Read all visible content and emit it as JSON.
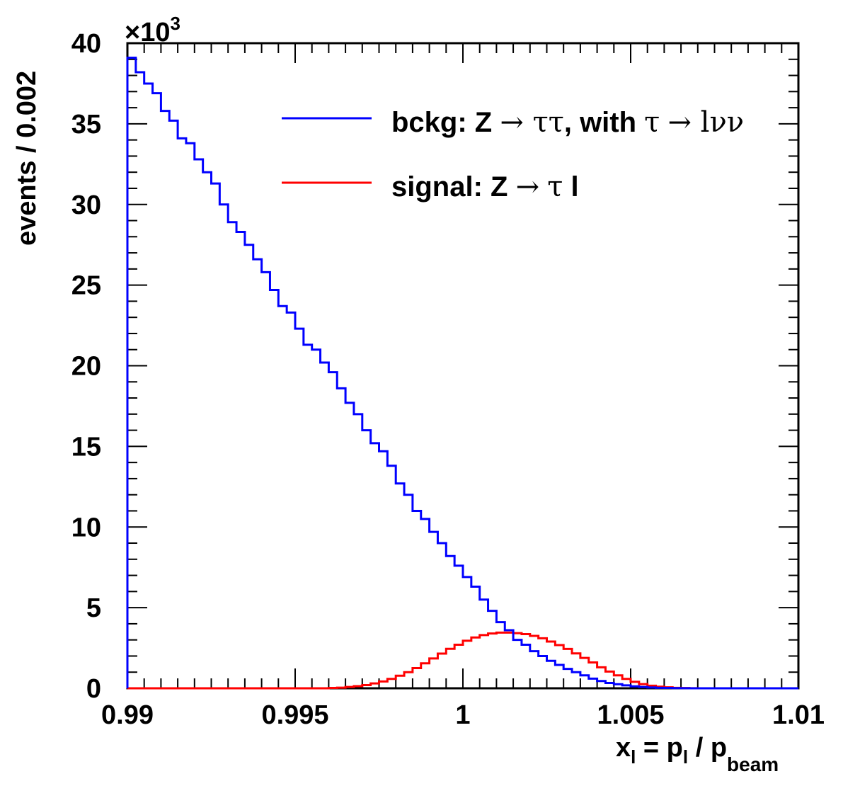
{
  "chart_data": {
    "type": "line",
    "style": "step-histogram",
    "title": "",
    "xlabel": "x_l = p_l / p_beam",
    "xlabel_parts": {
      "x": "x",
      "x_sub": "l",
      "eq": " = p",
      "p_sub": "l",
      "slash": " / p",
      "beam_sub": "beam"
    },
    "ylabel": "events / 0.002",
    "y_multiplier": "×10",
    "y_multiplier_exp": "3",
    "xlim": [
      0.99,
      1.01
    ],
    "ylim": [
      0,
      40
    ],
    "x_ticks": [
      "0.99",
      "0.995",
      "1",
      "1.005",
      "1.01"
    ],
    "x_tick_values": [
      0.99,
      0.995,
      1.0,
      1.005,
      1.01
    ],
    "y_ticks": [
      "0",
      "5",
      "10",
      "15",
      "20",
      "25",
      "30",
      "35",
      "40"
    ],
    "y_tick_values": [
      0,
      5,
      10,
      15,
      20,
      25,
      30,
      35,
      40
    ],
    "legend_position": "top-right",
    "bin_width": 0.00025,
    "series": [
      {
        "name": "bckg",
        "label": "bckg: Z → ττ, with τ → lνν",
        "label_parts": [
          "bckg: Z ",
          "→",
          " ττ",
          ", with ",
          "τ",
          " ",
          "→",
          " lνν"
        ],
        "color": "#0000ff",
        "values": [
          39.1,
          38.2,
          37.5,
          36.9,
          35.8,
          35.2,
          34.1,
          33.8,
          32.8,
          32.0,
          31.3,
          30.0,
          28.9,
          28.3,
          27.5,
          26.6,
          25.8,
          24.7,
          23.7,
          23.3,
          22.3,
          21.3,
          21.0,
          20.2,
          19.6,
          18.6,
          17.7,
          17.0,
          16.0,
          15.2,
          14.7,
          13.8,
          12.7,
          12.0,
          11.0,
          10.5,
          9.7,
          9.0,
          8.2,
          7.6,
          6.9,
          6.3,
          5.5,
          4.8,
          4.1,
          3.6,
          3.0,
          2.7,
          2.3,
          2.0,
          1.7,
          1.45,
          1.2,
          1.0,
          0.8,
          0.6,
          0.45,
          0.33,
          0.25,
          0.18,
          0.12,
          0.08,
          0.05,
          0.03,
          0.02,
          0.01,
          0.005,
          0,
          0,
          0,
          0,
          0,
          0,
          0,
          0,
          0,
          0,
          0,
          0,
          0
        ]
      },
      {
        "name": "signal",
        "label": "signal: Z → τ l",
        "label_parts": [
          "signal: Z ",
          "→",
          " ",
          "τ",
          " l"
        ],
        "color": "#ff0000",
        "values": [
          0,
          0,
          0,
          0,
          0,
          0,
          0,
          0,
          0,
          0,
          0,
          0,
          0,
          0,
          0,
          0,
          0,
          0,
          0,
          0,
          0,
          0,
          0,
          0,
          0.02,
          0.04,
          0.08,
          0.13,
          0.2,
          0.3,
          0.42,
          0.58,
          0.78,
          1.0,
          1.25,
          1.55,
          1.85,
          2.15,
          2.45,
          2.7,
          2.95,
          3.15,
          3.3,
          3.4,
          3.45,
          3.45,
          3.42,
          3.36,
          3.25,
          3.1,
          2.9,
          2.68,
          2.44,
          2.16,
          1.88,
          1.6,
          1.3,
          1.04,
          0.8,
          0.58,
          0.4,
          0.26,
          0.16,
          0.1,
          0.06,
          0.03,
          0.015,
          0.008,
          0,
          0,
          0,
          0,
          0,
          0,
          0,
          0,
          0,
          0,
          0,
          0
        ]
      }
    ]
  }
}
